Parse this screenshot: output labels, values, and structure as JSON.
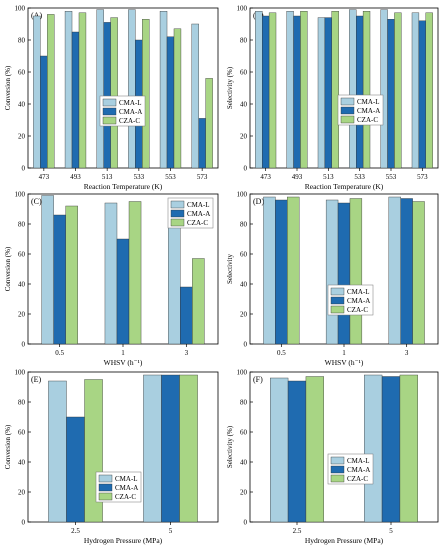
{
  "series_colors": {
    "CMA-L": "#a9cfe0",
    "CMA-A": "#1f6bb0",
    "CZA-C": "#a8d584"
  },
  "chart_data": [
    {
      "type": "bar",
      "panel_label": "(A)",
      "xlabel": "Reaction Temperature (K)",
      "ylabel": "Conversion (%)",
      "ylim": [
        0,
        100
      ],
      "yticks": [
        0,
        20,
        40,
        60,
        80,
        100
      ],
      "categories": [
        "473",
        "493",
        "513",
        "533",
        "553",
        "573"
      ],
      "legend_position": "center-right",
      "series": [
        {
          "name": "CMA-L",
          "values": [
            95,
            98,
            99,
            99,
            98,
            90
          ]
        },
        {
          "name": "CMA-A",
          "values": [
            70,
            85,
            91,
            80,
            82,
            31
          ]
        },
        {
          "name": "CZA-C",
          "values": [
            96,
            97,
            94,
            93,
            87,
            56
          ]
        }
      ]
    },
    {
      "type": "bar",
      "panel_label": "(B)",
      "xlabel": "Reaction Temperature (K)",
      "ylabel": "Selectivity (%)",
      "ylim": [
        0,
        100
      ],
      "yticks": [
        0,
        20,
        40,
        60,
        80,
        100
      ],
      "categories": [
        "473",
        "493",
        "513",
        "533",
        "553",
        "573"
      ],
      "legend_position": "center-right",
      "series": [
        {
          "name": "CMA-L",
          "values": [
            98,
            98,
            94,
            99,
            99,
            97
          ]
        },
        {
          "name": "CMA-A",
          "values": [
            95,
            95,
            94,
            95,
            93,
            92
          ]
        },
        {
          "name": "CZA-C",
          "values": [
            97,
            98,
            98,
            98,
            97,
            97
          ]
        }
      ]
    },
    {
      "type": "bar",
      "panel_label": "(C)",
      "xlabel": "WHSV (h⁻¹)",
      "ylabel": "Conversion (%)",
      "ylim": [
        0,
        100
      ],
      "yticks": [
        0,
        20,
        40,
        60,
        80,
        100
      ],
      "categories": [
        "0.5",
        "1",
        "3"
      ],
      "legend_position": "top-right",
      "series": [
        {
          "name": "CMA-L",
          "values": [
            99,
            94,
            79
          ]
        },
        {
          "name": "CMA-A",
          "values": [
            86,
            70,
            38
          ]
        },
        {
          "name": "CZA-C",
          "values": [
            92,
            95,
            57
          ]
        }
      ]
    },
    {
      "type": "bar",
      "panel_label": "(D)",
      "xlabel": "WHSV (h⁻¹)",
      "ylabel": "Selectivity",
      "ylim": [
        0,
        100
      ],
      "yticks": [
        0,
        20,
        40,
        60,
        80,
        100
      ],
      "categories": [
        "0.5",
        "1",
        "3"
      ],
      "legend_position": "center-left",
      "series": [
        {
          "name": "CMA-L",
          "values": [
            98,
            96,
            98
          ]
        },
        {
          "name": "CMA-A",
          "values": [
            96,
            94,
            97
          ]
        },
        {
          "name": "CZA-C",
          "values": [
            98,
            97,
            95
          ]
        }
      ]
    },
    {
      "type": "bar",
      "panel_label": "(E)",
      "xlabel": "Hydrogen Pressure (MPa)",
      "ylabel": "Conversion (%)",
      "ylim": [
        0,
        100
      ],
      "yticks": [
        0,
        20,
        40,
        60,
        80,
        100
      ],
      "categories": [
        "2.5",
        "5"
      ],
      "legend_position": "bottom-left",
      "series": [
        {
          "name": "CMA-L",
          "values": [
            94,
            98
          ]
        },
        {
          "name": "CMA-A",
          "values": [
            70,
            98
          ]
        },
        {
          "name": "CZA-C",
          "values": [
            95,
            98
          ]
        }
      ]
    },
    {
      "type": "bar",
      "panel_label": "(F)",
      "xlabel": "Hydrogen Pressure (MPa)",
      "ylabel": "Selectivity (%)",
      "ylim": [
        0,
        100
      ],
      "yticks": [
        0,
        20,
        40,
        60,
        80,
        100
      ],
      "categories": [
        "2.5",
        "5"
      ],
      "legend_position": "center-left",
      "series": [
        {
          "name": "CMA-L",
          "values": [
            96,
            98
          ]
        },
        {
          "name": "CMA-A",
          "values": [
            94,
            97
          ]
        },
        {
          "name": "CZA-C",
          "values": [
            97,
            98
          ]
        }
      ]
    }
  ]
}
